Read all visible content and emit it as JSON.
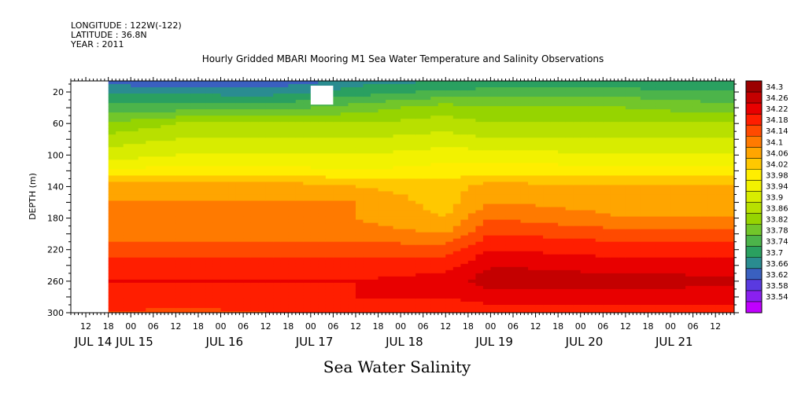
{
  "header": {
    "longitude": "LONGITUDE : 122W(-122)",
    "latitude": "LATITUDE : 36.8N",
    "year": "YEAR : 2011"
  },
  "chart_data": {
    "type": "heatmap",
    "title": "Hourly Gridded MBARI Mooring M1 Sea Water Temperature and Salinity Observations",
    "xlabel": "Sea Water Salinity",
    "ylabel": "DEPTH (m)",
    "y_ticks": [
      20,
      60,
      100,
      140,
      180,
      220,
      260,
      300
    ],
    "ylim": [
      300,
      6
    ],
    "x_hour_ticks": [
      "12",
      "18",
      "00",
      "06",
      "12",
      "18",
      "00",
      "06",
      "12",
      "18",
      "00",
      "06",
      "12",
      "18",
      "00",
      "06",
      "12",
      "18",
      "00",
      "06",
      "12",
      "18",
      "00",
      "06",
      "12",
      "18",
      "00",
      "06",
      "12",
      "18",
      "00",
      "06"
    ],
    "x_day_labels": [
      "JUL 14",
      "JUL 15",
      "JUL 16",
      "JUL 17",
      "JUL 18",
      "JUL 19",
      "JUL 20",
      "JUL 21"
    ],
    "x_range_hours": [
      "2011-07-14T08:00",
      "2011-07-21T17:00"
    ],
    "data_start": "2011-07-14T18:00",
    "colorbar": {
      "levels": [
        "34.3",
        "34.26",
        "34.22",
        "34.18",
        "34.14",
        "34.1",
        "34.06",
        "34.02",
        "33.98",
        "33.94",
        "33.9",
        "33.86",
        "33.82",
        "33.78",
        "33.74",
        "33.7",
        "33.66",
        "33.62",
        "33.58",
        "33.54"
      ],
      "colors": [
        "#9b0000",
        "#c40000",
        "#e80000",
        "#ff1e00",
        "#ff4a00",
        "#ff7a00",
        "#ffa500",
        "#ffc800",
        "#ffee00",
        "#f2f200",
        "#d8ec00",
        "#b8e000",
        "#96d400",
        "#72c62a",
        "#4cb44a",
        "#2aa060",
        "#2a8c90",
        "#3a60c0",
        "#5a3ae0",
        "#8a20f0",
        "#c000ff"
      ]
    },
    "profile_depths": [
      6,
      20,
      40,
      60,
      80,
      100,
      120,
      140,
      160,
      180,
      200,
      220,
      240,
      260,
      280,
      300
    ],
    "profiles": [
      {
        "hour": "2011-07-14T18:00",
        "salinity": [
          33.64,
          33.7,
          33.76,
          33.82,
          33.88,
          33.92,
          33.98,
          34.08,
          34.1,
          34.1,
          34.12,
          34.16,
          34.2,
          34.22,
          34.2,
          34.18
        ]
      },
      {
        "hour": "2011-07-15T12:00",
        "salinity": [
          33.62,
          33.69,
          33.76,
          33.86,
          33.9,
          33.94,
          34.0,
          34.08,
          34.1,
          34.1,
          34.12,
          34.16,
          34.2,
          34.22,
          34.2,
          34.17
        ]
      },
      {
        "hour": "2011-07-16T12:00",
        "salinity": [
          33.62,
          33.68,
          33.76,
          33.86,
          33.9,
          33.94,
          34.0,
          34.09,
          34.1,
          34.1,
          34.12,
          34.16,
          34.2,
          34.22,
          34.2,
          34.18
        ]
      },
      {
        "hour": "2011-07-17T12:00",
        "salinity": [
          33.68,
          33.72,
          33.8,
          33.86,
          33.9,
          33.94,
          33.98,
          34.06,
          34.1,
          34.1,
          34.12,
          34.16,
          34.2,
          34.22,
          34.22,
          34.19
        ]
      },
      {
        "hour": "2011-07-18T12:00",
        "salinity": [
          33.7,
          33.75,
          33.84,
          33.88,
          33.92,
          33.96,
          34.0,
          34.04,
          34.04,
          34.06,
          34.1,
          34.16,
          34.2,
          34.24,
          34.22,
          34.18
        ]
      },
      {
        "hour": "2011-07-19T00:00",
        "salinity": [
          33.7,
          33.76,
          33.82,
          33.86,
          33.9,
          33.96,
          34.0,
          34.08,
          34.1,
          34.14,
          34.18,
          34.22,
          34.26,
          34.28,
          34.24,
          34.2
        ]
      },
      {
        "hour": "2011-07-20T12:00",
        "salinity": [
          33.7,
          33.76,
          33.82,
          33.86,
          33.9,
          33.94,
          34.0,
          34.06,
          34.08,
          34.1,
          34.16,
          34.2,
          34.24,
          34.28,
          34.24,
          34.2
        ]
      },
      {
        "hour": "2011-07-21T12:00",
        "salinity": [
          33.7,
          33.74,
          33.8,
          33.86,
          33.9,
          33.94,
          34.0,
          34.06,
          34.08,
          34.1,
          34.16,
          34.2,
          34.24,
          34.27,
          34.24,
          34.2
        ]
      }
    ],
    "missing_block": {
      "x_range": [
        "2011-07-17T00:00",
        "2011-07-17T06:00"
      ],
      "y_range": [
        12,
        36
      ]
    }
  }
}
